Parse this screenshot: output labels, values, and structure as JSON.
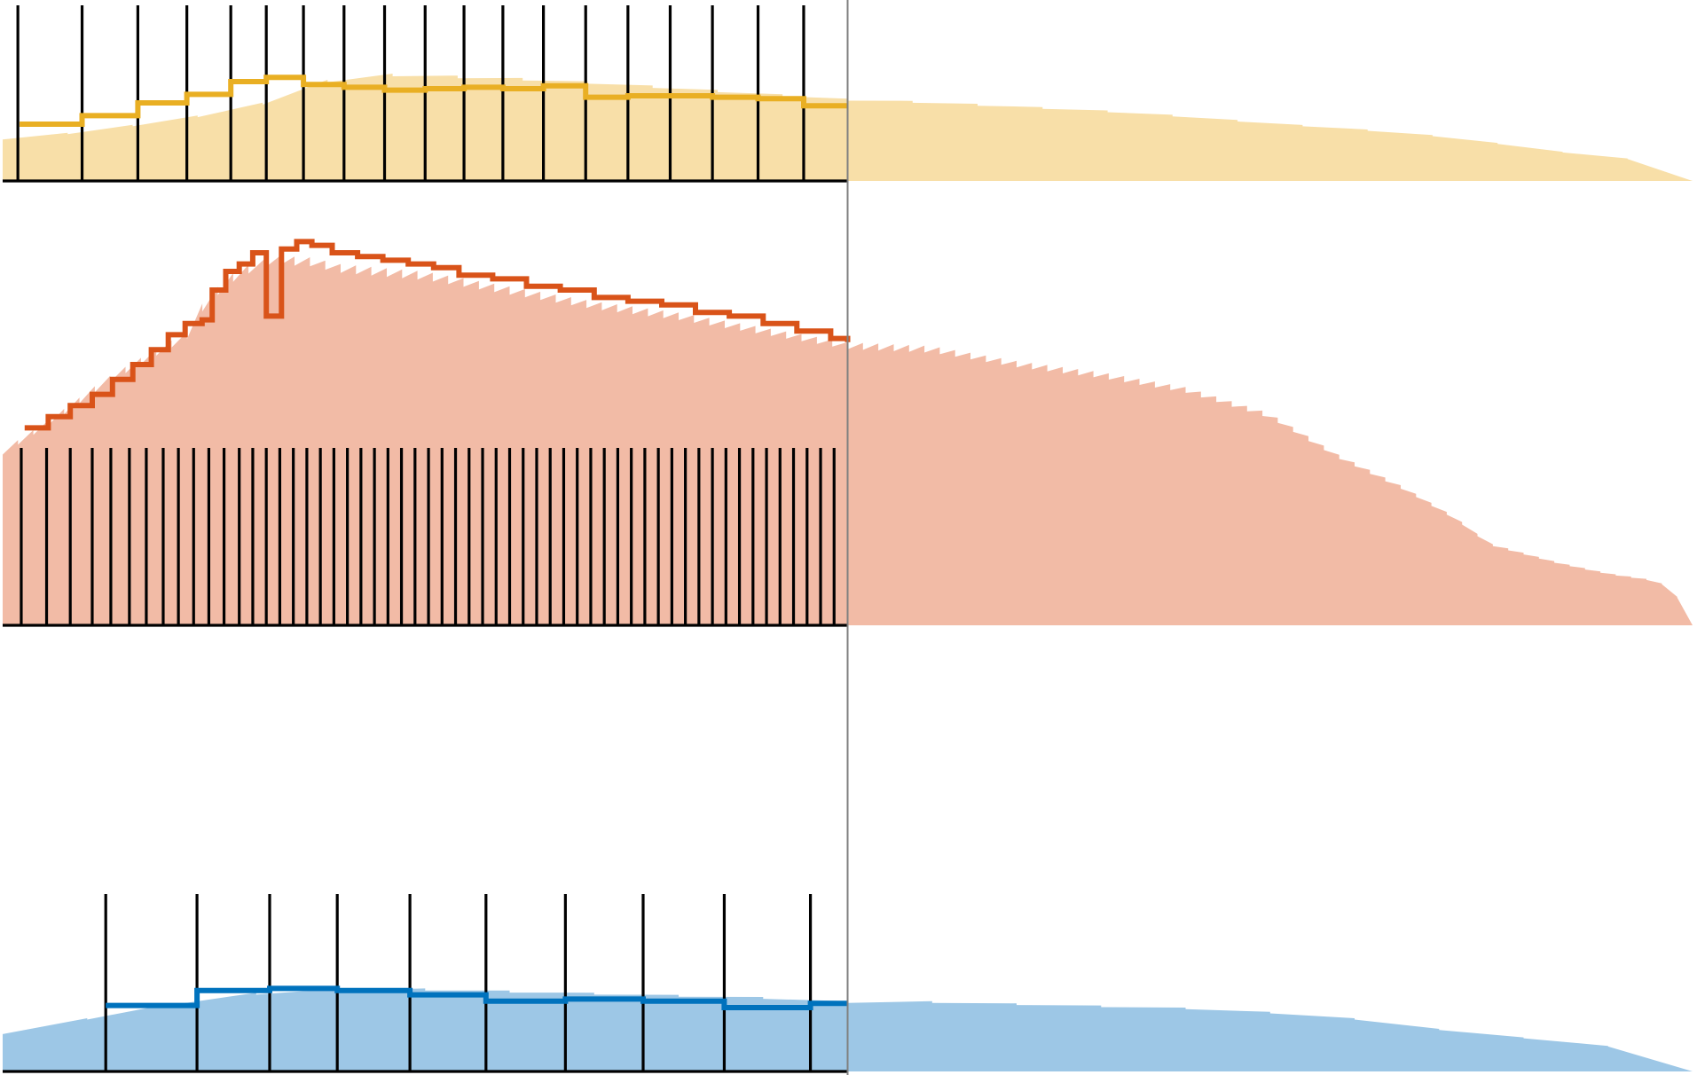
{
  "chart_data": {
    "type": "area",
    "title": "",
    "grid": false,
    "divider_x": 0.5,
    "panels": [
      {
        "name": "",
        "fill_color": "#f8dfa8",
        "line_color": "#e9af23",
        "area_sawtooth": [
          {
            "x": 0.0,
            "y": 0.3
          },
          {
            "x": 0.05,
            "y": 0.35
          },
          {
            "x": 0.08,
            "y": 0.4
          },
          {
            "x": 0.11,
            "y": 0.45
          },
          {
            "x": 0.14,
            "y": 0.51
          },
          {
            "x": 0.16,
            "y": 0.57
          },
          {
            "x": 0.18,
            "y": 0.67
          },
          {
            "x": 0.2,
            "y": 0.74
          },
          {
            "x": 0.22,
            "y": 0.76
          },
          {
            "x": 0.25,
            "y": 0.75
          },
          {
            "x": 0.3,
            "y": 0.73
          },
          {
            "x": 0.35,
            "y": 0.7
          },
          {
            "x": 0.4,
            "y": 0.66
          },
          {
            "x": 0.45,
            "y": 0.62
          },
          {
            "x": 0.5,
            "y": 0.58
          },
          {
            "x": 0.55,
            "y": 0.56
          },
          {
            "x": 0.6,
            "y": 0.53
          },
          {
            "x": 0.65,
            "y": 0.5
          },
          {
            "x": 0.7,
            "y": 0.46
          },
          {
            "x": 0.75,
            "y": 0.41
          },
          {
            "x": 0.8,
            "y": 0.37
          },
          {
            "x": 0.85,
            "y": 0.32
          },
          {
            "x": 0.89,
            "y": 0.26
          },
          {
            "x": 0.92,
            "y": 0.21
          },
          {
            "x": 0.95,
            "y": 0.17
          },
          {
            "x": 0.98,
            "y": 0.14
          },
          {
            "x": 0.995,
            "y": 0.06
          },
          {
            "x": 1.0,
            "y": 0.0
          }
        ],
        "sawtooth_teeth": 26,
        "step_line": [
          {
            "x": 0.01,
            "y": 0.4
          },
          {
            "x": 0.047,
            "y": 0.46
          },
          {
            "x": 0.08,
            "y": 0.55
          },
          {
            "x": 0.109,
            "y": 0.61
          },
          {
            "x": 0.135,
            "y": 0.7
          },
          {
            "x": 0.156,
            "y": 0.73
          },
          {
            "x": 0.178,
            "y": 0.68
          },
          {
            "x": 0.202,
            "y": 0.66
          },
          {
            "x": 0.226,
            "y": 0.64
          },
          {
            "x": 0.25,
            "y": 0.65
          },
          {
            "x": 0.273,
            "y": 0.66
          },
          {
            "x": 0.296,
            "y": 0.65
          },
          {
            "x": 0.32,
            "y": 0.67
          },
          {
            "x": 0.345,
            "y": 0.59
          },
          {
            "x": 0.37,
            "y": 0.6
          },
          {
            "x": 0.395,
            "y": 0.6
          },
          {
            "x": 0.42,
            "y": 0.59
          },
          {
            "x": 0.447,
            "y": 0.58
          },
          {
            "x": 0.474,
            "y": 0.53
          },
          {
            "x": 0.5,
            "y": 0.53
          }
        ],
        "event_times": [
          0.009,
          0.047,
          0.08,
          0.109,
          0.135,
          0.156,
          0.178,
          0.202,
          0.226,
          0.25,
          0.273,
          0.296,
          0.32,
          0.345,
          0.37,
          0.395,
          0.42,
          0.447,
          0.474
        ]
      },
      {
        "name": "",
        "fill_color": "#f2bba6",
        "line_color": "#d95319",
        "area_sawtooth": [
          {
            "x": 0.0,
            "y": 0.47
          },
          {
            "x": 0.03,
            "y": 0.56
          },
          {
            "x": 0.06,
            "y": 0.66
          },
          {
            "x": 0.09,
            "y": 0.74
          },
          {
            "x": 0.11,
            "y": 0.79
          },
          {
            "x": 0.12,
            "y": 0.88
          },
          {
            "x": 0.14,
            "y": 0.96
          },
          {
            "x": 0.16,
            "y": 0.99
          },
          {
            "x": 0.18,
            "y": 0.99
          },
          {
            "x": 0.2,
            "y": 0.97
          },
          {
            "x": 0.25,
            "y": 0.95
          },
          {
            "x": 0.3,
            "y": 0.91
          },
          {
            "x": 0.35,
            "y": 0.87
          },
          {
            "x": 0.4,
            "y": 0.84
          },
          {
            "x": 0.45,
            "y": 0.8
          },
          {
            "x": 0.5,
            "y": 0.76
          },
          {
            "x": 0.55,
            "y": 0.75
          },
          {
            "x": 0.6,
            "y": 0.71
          },
          {
            "x": 0.65,
            "y": 0.68
          },
          {
            "x": 0.7,
            "y": 0.64
          },
          {
            "x": 0.75,
            "y": 0.57
          },
          {
            "x": 0.79,
            "y": 0.46
          },
          {
            "x": 0.83,
            "y": 0.37
          },
          {
            "x": 0.86,
            "y": 0.29
          },
          {
            "x": 0.88,
            "y": 0.22
          },
          {
            "x": 0.92,
            "y": 0.17
          },
          {
            "x": 0.95,
            "y": 0.14
          },
          {
            "x": 0.98,
            "y": 0.12
          },
          {
            "x": 0.995,
            "y": 0.06
          },
          {
            "x": 1.0,
            "y": 0.0
          }
        ],
        "sawtooth_teeth": 110,
        "step_line": [
          {
            "x": 0.013,
            "y": 0.53
          },
          {
            "x": 0.027,
            "y": 0.56
          },
          {
            "x": 0.04,
            "y": 0.59
          },
          {
            "x": 0.053,
            "y": 0.62
          },
          {
            "x": 0.065,
            "y": 0.66
          },
          {
            "x": 0.077,
            "y": 0.7
          },
          {
            "x": 0.088,
            "y": 0.74
          },
          {
            "x": 0.098,
            "y": 0.78
          },
          {
            "x": 0.108,
            "y": 0.81
          },
          {
            "x": 0.118,
            "y": 0.82
          },
          {
            "x": 0.124,
            "y": 0.9
          },
          {
            "x": 0.132,
            "y": 0.95
          },
          {
            "x": 0.14,
            "y": 0.97
          },
          {
            "x": 0.148,
            "y": 1.0
          },
          {
            "x": 0.156,
            "y": 0.83
          },
          {
            "x": 0.165,
            "y": 1.01
          },
          {
            "x": 0.174,
            "y": 1.03
          },
          {
            "x": 0.183,
            "y": 1.02
          },
          {
            "x": 0.195,
            "y": 1.0
          },
          {
            "x": 0.21,
            "y": 0.99
          },
          {
            "x": 0.225,
            "y": 0.98
          },
          {
            "x": 0.24,
            "y": 0.97
          },
          {
            "x": 0.255,
            "y": 0.96
          },
          {
            "x": 0.27,
            "y": 0.94
          },
          {
            "x": 0.29,
            "y": 0.93
          },
          {
            "x": 0.31,
            "y": 0.91
          },
          {
            "x": 0.33,
            "y": 0.9
          },
          {
            "x": 0.35,
            "y": 0.88
          },
          {
            "x": 0.37,
            "y": 0.87
          },
          {
            "x": 0.39,
            "y": 0.86
          },
          {
            "x": 0.41,
            "y": 0.84
          },
          {
            "x": 0.43,
            "y": 0.83
          },
          {
            "x": 0.45,
            "y": 0.81
          },
          {
            "x": 0.47,
            "y": 0.79
          },
          {
            "x": 0.49,
            "y": 0.77
          },
          {
            "x": 0.5,
            "y": 0.76
          }
        ],
        "event_times": [
          0.011,
          0.026,
          0.04,
          0.053,
          0.064,
          0.075,
          0.085,
          0.095,
          0.104,
          0.113,
          0.122,
          0.131,
          0.14,
          0.148,
          0.156,
          0.164,
          0.172,
          0.18,
          0.188,
          0.196,
          0.204,
          0.212,
          0.22,
          0.228,
          0.236,
          0.244,
          0.252,
          0.26,
          0.268,
          0.276,
          0.284,
          0.292,
          0.3,
          0.308,
          0.316,
          0.324,
          0.332,
          0.34,
          0.348,
          0.356,
          0.364,
          0.372,
          0.38,
          0.388,
          0.396,
          0.404,
          0.412,
          0.42,
          0.428,
          0.436,
          0.444,
          0.452,
          0.46,
          0.468,
          0.476,
          0.484,
          0.492
        ]
      },
      {
        "name": "",
        "fill_color": "#9dc7e6",
        "line_color": "#0072bd",
        "area_sawtooth": [
          {
            "x": 0.0,
            "y": 0.18
          },
          {
            "x": 0.05,
            "y": 0.25
          },
          {
            "x": 0.1,
            "y": 0.32
          },
          {
            "x": 0.15,
            "y": 0.37
          },
          {
            "x": 0.2,
            "y": 0.39
          },
          {
            "x": 0.25,
            "y": 0.39
          },
          {
            "x": 0.3,
            "y": 0.38
          },
          {
            "x": 0.35,
            "y": 0.37
          },
          {
            "x": 0.4,
            "y": 0.36
          },
          {
            "x": 0.45,
            "y": 0.35
          },
          {
            "x": 0.5,
            "y": 0.33
          },
          {
            "x": 0.55,
            "y": 0.33
          },
          {
            "x": 0.6,
            "y": 0.32
          },
          {
            "x": 0.65,
            "y": 0.31
          },
          {
            "x": 0.7,
            "y": 0.3
          },
          {
            "x": 0.75,
            "y": 0.28
          },
          {
            "x": 0.8,
            "y": 0.25
          },
          {
            "x": 0.85,
            "y": 0.2
          },
          {
            "x": 0.9,
            "y": 0.16
          },
          {
            "x": 0.95,
            "y": 0.12
          },
          {
            "x": 0.98,
            "y": 0.11
          },
          {
            "x": 0.995,
            "y": 0.06
          },
          {
            "x": 1.0,
            "y": 0.0
          }
        ],
        "sawtooth_teeth": 20,
        "step_line": [
          {
            "x": 0.061,
            "y": 0.31
          },
          {
            "x": 0.115,
            "y": 0.38
          },
          {
            "x": 0.158,
            "y": 0.39
          },
          {
            "x": 0.198,
            "y": 0.38
          },
          {
            "x": 0.241,
            "y": 0.36
          },
          {
            "x": 0.286,
            "y": 0.33
          },
          {
            "x": 0.333,
            "y": 0.34
          },
          {
            "x": 0.379,
            "y": 0.33
          },
          {
            "x": 0.427,
            "y": 0.3
          },
          {
            "x": 0.478,
            "y": 0.32
          },
          {
            "x": 0.5,
            "y": 0.32
          }
        ],
        "event_times": [
          0.061,
          0.115,
          0.158,
          0.198,
          0.241,
          0.286,
          0.333,
          0.379,
          0.427,
          0.478
        ]
      }
    ]
  }
}
